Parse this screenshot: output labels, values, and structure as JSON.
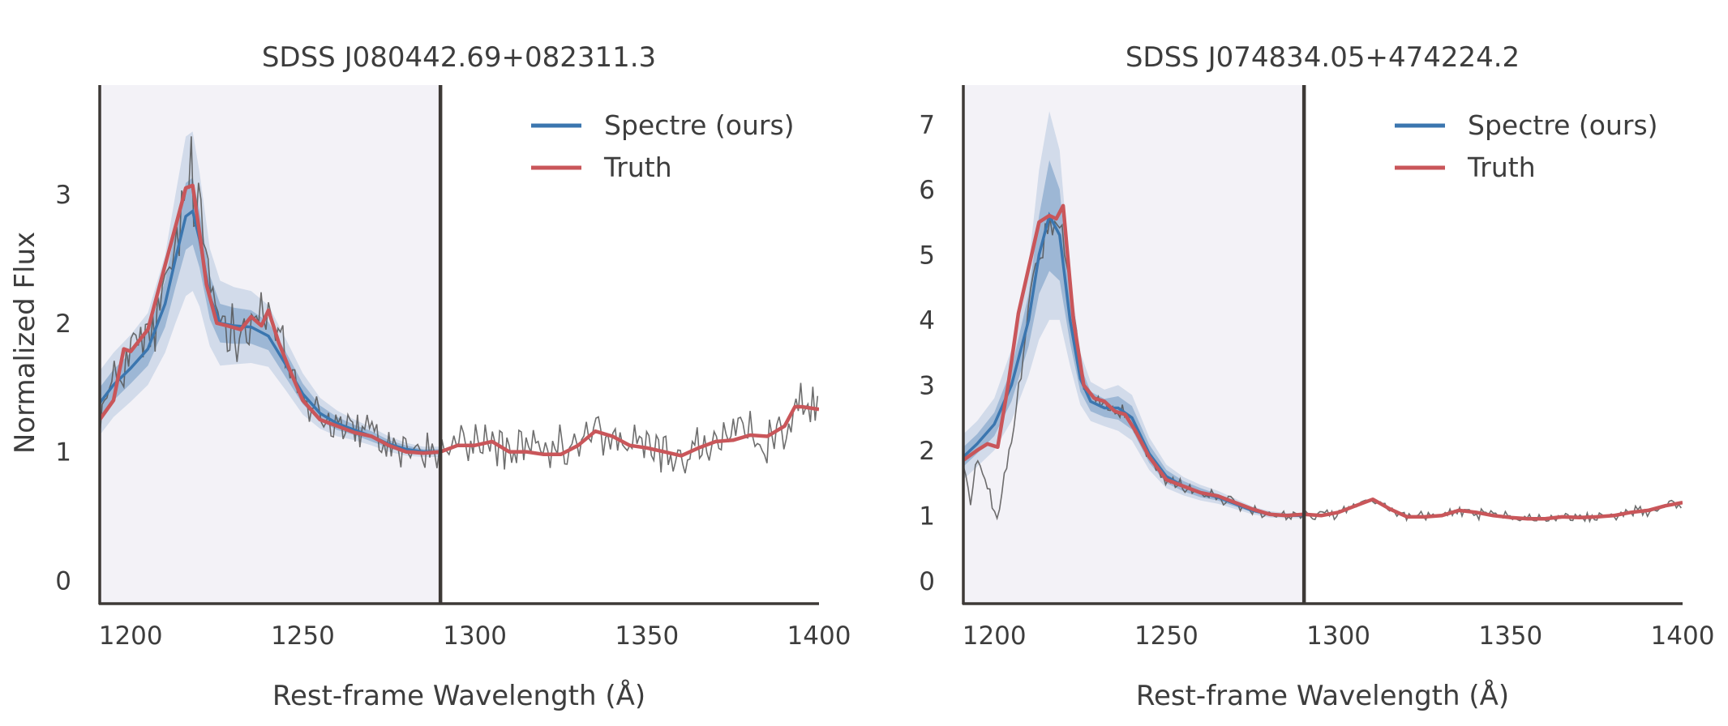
{
  "figure": {
    "ylabel": "Normalized Flux",
    "xlabel": "Rest-frame Wavelength (Å)"
  },
  "colors": {
    "prediction": "#3b76af",
    "truth": "#c9565a",
    "observed": "#555555",
    "shade": "#f3f2f7",
    "axis": "#3d3936"
  },
  "chart_data": [
    {
      "type": "line",
      "title": "SDSS J080442.69+082311.3",
      "xlabel": "Rest-frame Wavelength (Å)",
      "ylabel": "Normalized Flux",
      "xlim": [
        1191,
        1400
      ],
      "ylim": [
        -0.18,
        3.85
      ],
      "xticks": [
        1200,
        1250,
        1300,
        1350,
        1400
      ],
      "yticks": [
        0,
        1,
        2,
        3
      ],
      "split_wavelength": 1290,
      "shaded_region": [
        1191,
        1290
      ],
      "legend": {
        "position": "top-right",
        "entries": [
          "Spectre (ours)",
          "Truth"
        ]
      },
      "series": [
        {
          "name": "Spectre (ours)",
          "role": "prediction",
          "x": [
            1191,
            1195,
            1200,
            1205,
            1210,
            1213,
            1216,
            1218,
            1220,
            1223,
            1226,
            1230,
            1235,
            1240,
            1245,
            1250,
            1255,
            1260,
            1265,
            1270,
            1275,
            1280,
            1285,
            1290
          ],
          "y": [
            1.38,
            1.52,
            1.65,
            1.8,
            2.15,
            2.5,
            2.83,
            2.87,
            2.65,
            2.2,
            2.0,
            1.98,
            1.97,
            1.9,
            1.68,
            1.45,
            1.3,
            1.22,
            1.17,
            1.12,
            1.06,
            1.02,
            1.0,
            1.0
          ],
          "band_inner": [
            0.12,
            0.12,
            0.12,
            0.13,
            0.18,
            0.22,
            0.26,
            0.26,
            0.22,
            0.17,
            0.15,
            0.14,
            0.13,
            0.11,
            0.1,
            0.08,
            0.06,
            0.05,
            0.04,
            0.04,
            0.03,
            0.03,
            0.02,
            0.02
          ],
          "band_outer": [
            0.25,
            0.25,
            0.26,
            0.28,
            0.38,
            0.5,
            0.62,
            0.62,
            0.52,
            0.38,
            0.33,
            0.3,
            0.28,
            0.24,
            0.2,
            0.16,
            0.12,
            0.1,
            0.08,
            0.07,
            0.06,
            0.05,
            0.04,
            0.04
          ]
        },
        {
          "name": "Truth",
          "role": "truth",
          "x": [
            1191,
            1195,
            1198,
            1200,
            1205,
            1210,
            1213,
            1216,
            1218,
            1220,
            1222,
            1225,
            1228,
            1232,
            1235,
            1238,
            1240,
            1243,
            1246,
            1250,
            1255,
            1260,
            1265,
            1270,
            1275,
            1280,
            1285,
            1290,
            1295,
            1300,
            1305,
            1310,
            1315,
            1320,
            1325,
            1330,
            1335,
            1340,
            1345,
            1350,
            1355,
            1360,
            1365,
            1370,
            1375,
            1380,
            1385,
            1390,
            1393,
            1395,
            1400
          ],
          "y": [
            1.25,
            1.4,
            1.8,
            1.78,
            1.95,
            2.45,
            2.75,
            3.05,
            3.07,
            2.7,
            2.3,
            2.0,
            1.98,
            1.95,
            2.05,
            1.98,
            2.1,
            1.85,
            1.65,
            1.4,
            1.25,
            1.2,
            1.15,
            1.12,
            1.05,
            1.0,
            0.99,
            1.0,
            1.05,
            1.05,
            1.08,
            1.0,
            1.0,
            0.98,
            0.98,
            1.05,
            1.16,
            1.12,
            1.05,
            1.03,
            1.0,
            0.97,
            1.03,
            1.08,
            1.09,
            1.13,
            1.12,
            1.2,
            1.35,
            1.35,
            1.33
          ]
        },
        {
          "name": "",
          "role": "observed",
          "x": [
            1191,
            1195,
            1200,
            1205,
            1210,
            1213,
            1216,
            1218,
            1220,
            1223,
            1226,
            1230,
            1235,
            1240,
            1245,
            1250,
            1255,
            1260,
            1265,
            1270,
            1275,
            1280,
            1285,
            1290,
            1295,
            1300,
            1305,
            1310,
            1315,
            1320,
            1325,
            1330,
            1335,
            1340,
            1345,
            1350,
            1355,
            1360,
            1365,
            1370,
            1375,
            1380,
            1385,
            1390,
            1395,
            1400
          ],
          "y": [
            1.3,
            1.5,
            1.8,
            1.85,
            2.2,
            2.6,
            3.0,
            3.1,
            2.8,
            2.3,
            2.05,
            2.0,
            2.05,
            2.05,
            1.7,
            1.45,
            1.3,
            1.22,
            1.17,
            1.12,
            1.06,
            1.02,
            1.0,
            1.0,
            1.06,
            1.06,
            1.08,
            1.01,
            1.0,
            0.98,
            0.98,
            1.05,
            1.15,
            1.12,
            1.05,
            1.03,
            1.0,
            0.97,
            1.03,
            1.08,
            1.09,
            1.13,
            1.12,
            1.2,
            1.33,
            1.33
          ],
          "noise": 0.13
        }
      ]
    },
    {
      "type": "line",
      "title": "SDSS J074834.05+474224.2",
      "xlabel": "Rest-frame Wavelength (Å)",
      "ylabel": "",
      "xlim": [
        1191,
        1400
      ],
      "ylim": [
        -0.35,
        7.6
      ],
      "xticks": [
        1200,
        1250,
        1300,
        1350,
        1400
      ],
      "yticks": [
        0,
        1,
        2,
        3,
        4,
        5,
        6,
        7
      ],
      "split_wavelength": 1290,
      "shaded_region": [
        1191,
        1290
      ],
      "legend": {
        "position": "top-right",
        "entries": [
          "Spectre (ours)",
          "Truth"
        ]
      },
      "series": [
        {
          "name": "Spectre (ours)",
          "role": "prediction",
          "x": [
            1191,
            1195,
            1200,
            1205,
            1210,
            1213,
            1216,
            1219,
            1222,
            1225,
            1228,
            1232,
            1236,
            1240,
            1245,
            1250,
            1255,
            1260,
            1265,
            1270,
            1275,
            1280,
            1285,
            1290
          ],
          "y": [
            1.9,
            2.1,
            2.4,
            3.0,
            4.0,
            5.0,
            5.6,
            5.3,
            4.0,
            3.1,
            2.75,
            2.65,
            2.65,
            2.5,
            1.95,
            1.6,
            1.45,
            1.35,
            1.28,
            1.18,
            1.08,
            1.02,
            1.0,
            1.0
          ],
          "band_inner": [
            0.15,
            0.15,
            0.18,
            0.25,
            0.4,
            0.6,
            0.85,
            0.7,
            0.35,
            0.2,
            0.15,
            0.14,
            0.18,
            0.18,
            0.14,
            0.1,
            0.08,
            0.07,
            0.05,
            0.04,
            0.03,
            0.03,
            0.02,
            0.02
          ],
          "band_outer": [
            0.35,
            0.35,
            0.4,
            0.55,
            0.85,
            1.3,
            1.6,
            1.3,
            0.7,
            0.4,
            0.3,
            0.28,
            0.35,
            0.35,
            0.25,
            0.18,
            0.14,
            0.12,
            0.1,
            0.08,
            0.06,
            0.05,
            0.04,
            0.04
          ]
        },
        {
          "name": "Truth",
          "role": "truth",
          "x": [
            1191,
            1195,
            1198,
            1201,
            1204,
            1207,
            1210,
            1213,
            1216,
            1218,
            1220,
            1223,
            1226,
            1229,
            1232,
            1235,
            1238,
            1241,
            1245,
            1250,
            1255,
            1260,
            1265,
            1270,
            1275,
            1280,
            1285,
            1290,
            1295,
            1300,
            1305,
            1310,
            1315,
            1320,
            1325,
            1330,
            1335,
            1340,
            1345,
            1350,
            1355,
            1360,
            1365,
            1370,
            1375,
            1380,
            1385,
            1390,
            1395,
            1400
          ],
          "y": [
            1.85,
            2.0,
            2.1,
            2.05,
            3.0,
            4.1,
            4.8,
            5.5,
            5.6,
            5.55,
            5.75,
            4.0,
            3.0,
            2.8,
            2.75,
            2.6,
            2.55,
            2.3,
            1.9,
            1.55,
            1.45,
            1.35,
            1.3,
            1.2,
            1.1,
            1.02,
            1.0,
            1.02,
            1.0,
            1.05,
            1.15,
            1.25,
            1.1,
            0.98,
            0.98,
            1.0,
            1.08,
            1.05,
            1.0,
            0.97,
            0.95,
            0.95,
            0.98,
            0.97,
            0.98,
            1.0,
            1.05,
            1.08,
            1.15,
            1.2
          ]
        },
        {
          "name": "",
          "role": "observed",
          "x": [
            1191,
            1193,
            1195,
            1197,
            1199,
            1201,
            1203,
            1206,
            1210,
            1213,
            1216,
            1218,
            1220,
            1223,
            1226,
            1229,
            1232,
            1235,
            1238,
            1241,
            1245,
            1250,
            1255,
            1260,
            1265,
            1270,
            1275,
            1280,
            1285,
            1290,
            1295,
            1300,
            1305,
            1310,
            1315,
            1320,
            1325,
            1330,
            1335,
            1340,
            1345,
            1350,
            1355,
            1360,
            1365,
            1370,
            1375,
            1380,
            1385,
            1390,
            1395,
            1400
          ],
          "y": [
            1.8,
            1.2,
            1.9,
            1.5,
            1.3,
            0.9,
            1.6,
            2.4,
            4.2,
            5.0,
            5.4,
            5.5,
            5.2,
            4.0,
            3.0,
            2.8,
            2.72,
            2.58,
            2.52,
            2.28,
            1.88,
            1.52,
            1.42,
            1.32,
            1.28,
            1.18,
            1.08,
            1.02,
            1.0,
            1.02,
            1.0,
            1.05,
            1.15,
            1.25,
            1.1,
            0.98,
            0.98,
            1.0,
            1.08,
            1.05,
            1.0,
            0.97,
            0.95,
            0.95,
            0.98,
            0.97,
            0.98,
            1.0,
            1.05,
            1.08,
            1.15,
            1.2
          ],
          "noise": 0.06
        }
      ]
    }
  ]
}
